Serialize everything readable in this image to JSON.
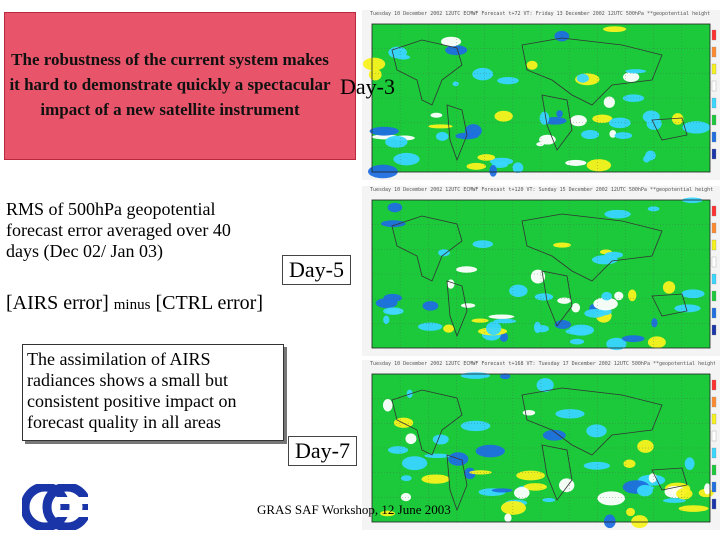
{
  "slide": {
    "title": "The robustness of the current system makes it hard to demonstrate quickly a spectacular impact of a new satellite instrument",
    "rms_text": "RMS of 500hPa geopotential forecast error averaged over 40 days (Dec 02/ Jan 03)",
    "diff": {
      "part1": "[AIRS error] ",
      "minus": "minus",
      "part2": " [CTRL error]"
    },
    "assimilation_text": "The assimilation of AIRS radiances shows a small but consistent positive impact on forecast quality in all areas",
    "footer": "GRAS SAF Workshop, 12 June 2003"
  },
  "panels": [
    {
      "label": "Day-3",
      "header": "Tuesday 10 December 2002 12UTC ECMWF  Forecast t+72 VT: Friday 13 December 2002 12UTC 500hPa **geopotential height"
    },
    {
      "label": "Day-5",
      "header": "Tuesday 10 December 2002 12UTC ECMWF  Forecast t+120 VT: Sunday 15 December 2002 12UTC 500hPa **geopotential height"
    },
    {
      "label": "Day-7",
      "header": "Tuesday 10 December 2002 12UTC ECMWF  Forecast t+168 VT: Tuesday 17 December 2002 12UTC 500hPa **geopotential height"
    }
  ],
  "colors": {
    "title_box": "#e8546a",
    "map_green": "#1bc93a",
    "map_blue": "#1f6fe0",
    "map_cyan": "#39d6ff",
    "map_yellow": "#f7f21c",
    "logo_blue": "#1a35a8"
  }
}
